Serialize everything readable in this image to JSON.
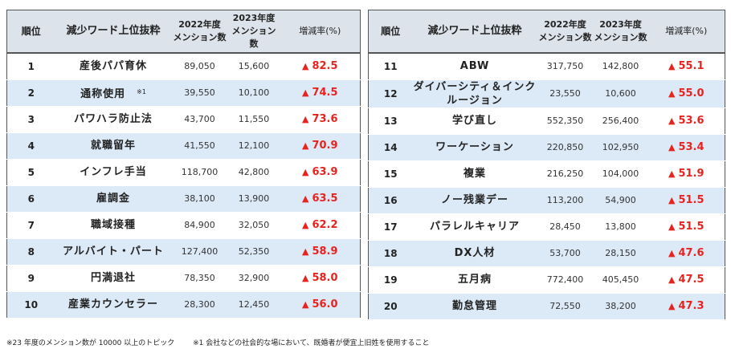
{
  "headers": {
    "rank": "順位",
    "word": "減少ワード上位抜粋",
    "y2022": "2022年度\nメンション数",
    "y2023": "2023年度\nメンション数",
    "rate": "増減率(%)"
  },
  "rows": [
    {
      "rank": "1",
      "word": "産後パパ育休",
      "note": "",
      "y2022": "89,050",
      "y2023": "15,600",
      "rate": "82.5"
    },
    {
      "rank": "2",
      "word": "通称使用",
      "note": "※1",
      "y2022": "39,550",
      "y2023": "10,100",
      "rate": "74.5"
    },
    {
      "rank": "3",
      "word": "パワハラ防止法",
      "note": "",
      "y2022": "43,700",
      "y2023": "11,550",
      "rate": "73.6"
    },
    {
      "rank": "4",
      "word": "就職留年",
      "note": "",
      "y2022": "41,550",
      "y2023": "12,100",
      "rate": "70.9"
    },
    {
      "rank": "5",
      "word": "インフレ手当",
      "note": "",
      "y2022": "118,700",
      "y2023": "42,800",
      "rate": "63.9"
    },
    {
      "rank": "6",
      "word": "雇調金",
      "note": "",
      "y2022": "38,100",
      "y2023": "13,900",
      "rate": "63.5"
    },
    {
      "rank": "7",
      "word": "職域接種",
      "note": "",
      "y2022": "84,900",
      "y2023": "32,050",
      "rate": "62.2"
    },
    {
      "rank": "8",
      "word": "アルバイト・パート",
      "note": "",
      "y2022": "127,400",
      "y2023": "52,350",
      "rate": "58.9"
    },
    {
      "rank": "9",
      "word": "円満退社",
      "note": "",
      "y2022": "78,350",
      "y2023": "32,900",
      "rate": "58.0"
    },
    {
      "rank": "10",
      "word": "産業カウンセラー",
      "note": "",
      "y2022": "28,300",
      "y2023": "12,450",
      "rate": "56.0"
    },
    {
      "rank": "11",
      "word": "ABW",
      "note": "",
      "y2022": "317,750",
      "y2023": "142,800",
      "rate": "55.1"
    },
    {
      "rank": "12",
      "word": "ダイバーシティ＆インクルージョン",
      "note": "",
      "y2022": "23,550",
      "y2023": "10,600",
      "rate": "55.0"
    },
    {
      "rank": "13",
      "word": "学び直し",
      "note": "",
      "y2022": "552,350",
      "y2023": "256,400",
      "rate": "53.6"
    },
    {
      "rank": "14",
      "word": "ワーケーション",
      "note": "",
      "y2022": "220,850",
      "y2023": "102,950",
      "rate": "53.4"
    },
    {
      "rank": "15",
      "word": "複業",
      "note": "",
      "y2022": "216,250",
      "y2023": "104,000",
      "rate": "51.9"
    },
    {
      "rank": "16",
      "word": "ノー残業デー",
      "note": "",
      "y2022": "113,200",
      "y2023": "54,900",
      "rate": "51.5"
    },
    {
      "rank": "17",
      "word": "パラレルキャリア",
      "note": "",
      "y2022": "28,450",
      "y2023": "13,800",
      "rate": "51.5"
    },
    {
      "rank": "18",
      "word": "DX人材",
      "note": "",
      "y2022": "53,700",
      "y2023": "28,150",
      "rate": "47.6"
    },
    {
      "rank": "19",
      "word": "五月病",
      "note": "",
      "y2022": "772,400",
      "y2023": "405,450",
      "rate": "47.5"
    },
    {
      "rank": "20",
      "word": "勤怠管理",
      "note": "",
      "y2022": "72,550",
      "y2023": "38,200",
      "rate": "47.3"
    }
  ],
  "triangle": "▲",
  "footnotes": [
    "※23 年度のメンション数が 10000 以上のトピック",
    "※1 会社などの社会的な場において、既婚者が便宜上旧姓を使用すること"
  ],
  "colors": {
    "header_bg": "#dde3ea",
    "stripe": "#dce9f7",
    "rate_red": "#e8231e"
  }
}
